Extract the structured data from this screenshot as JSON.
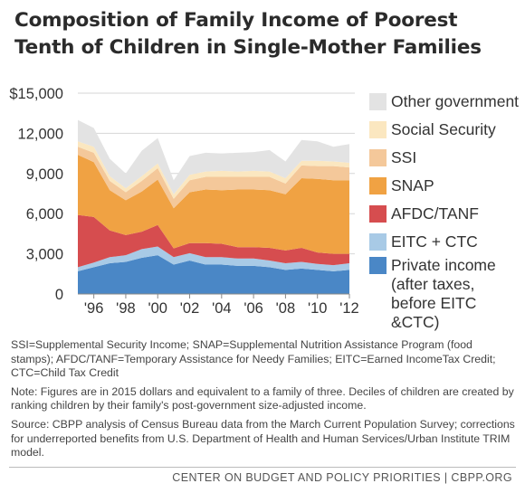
{
  "title": "Composition of Family Income of Poorest Tenth of Children in Single-Mother Families",
  "chart_data": {
    "type": "area",
    "stacked": true,
    "x": [
      1995,
      1996,
      1997,
      1998,
      1999,
      2000,
      2001,
      2002,
      2003,
      2004,
      2005,
      2006,
      2007,
      2008,
      2009,
      2010,
      2011,
      2012
    ],
    "xlim": [
      1995,
      2012
    ],
    "ylim": [
      0,
      15000
    ],
    "yticks": [
      0,
      3000,
      6000,
      9000,
      12000,
      15000
    ],
    "ytick_labels": [
      "0",
      "3,000",
      "6,000",
      "9,000",
      "12,000",
      "$15,000"
    ],
    "xtick_labels": [
      {
        "x": 1996,
        "label": "'96"
      },
      {
        "x": 1998,
        "label": "'98"
      },
      {
        "x": 2000,
        "label": "'00"
      },
      {
        "x": 2002,
        "label": "'02"
      },
      {
        "x": 2004,
        "label": "'04"
      },
      {
        "x": 2006,
        "label": "'06"
      },
      {
        "x": 2008,
        "label": "'08"
      },
      {
        "x": 2010,
        "label": "'10"
      },
      {
        "x": 2012,
        "label": "'12"
      }
    ],
    "grid": "horizontal",
    "legend_position": "right",
    "series": [
      {
        "name": "Private income (after taxes, before EITC &CTC)",
        "color": "#4a87c6",
        "values": [
          1700,
          2000,
          2300,
          2400,
          2700,
          2900,
          2200,
          2500,
          2200,
          2200,
          2100,
          2100,
          2000,
          1800,
          1900,
          1800,
          1700,
          1800
        ]
      },
      {
        "name": "EITC + CTC",
        "color": "#a8cae6",
        "values": [
          300,
          350,
          450,
          500,
          650,
          650,
          550,
          550,
          550,
          550,
          550,
          550,
          500,
          500,
          500,
          450,
          450,
          500
        ]
      },
      {
        "name": "AFDC/TANF",
        "color": "#d64d4f",
        "values": [
          3900,
          3400,
          2000,
          1500,
          1300,
          1600,
          650,
          750,
          1050,
          1000,
          850,
          850,
          950,
          950,
          1050,
          850,
          850,
          700
        ]
      },
      {
        "name": "SNAP",
        "color": "#f0a243",
        "values": [
          4500,
          4100,
          3000,
          2600,
          3000,
          3400,
          3000,
          3800,
          4000,
          4000,
          4300,
          4300,
          4300,
          4200,
          5200,
          5500,
          5500,
          5500
        ]
      },
      {
        "name": "SSI",
        "color": "#f4c89a",
        "values": [
          600,
          700,
          700,
          600,
          800,
          850,
          700,
          900,
          950,
          1000,
          950,
          950,
          1000,
          800,
          950,
          950,
          1050,
          950
        ]
      },
      {
        "name": "Social Security",
        "color": "#fbe7c0",
        "values": [
          400,
          450,
          350,
          300,
          350,
          350,
          350,
          400,
          400,
          450,
          400,
          450,
          400,
          400,
          350,
          400,
          350,
          350
        ]
      },
      {
        "name": "Other government",
        "color": "#e3e3e3",
        "values": [
          1600,
          1400,
          1300,
          1100,
          1900,
          1900,
          1050,
          1400,
          1400,
          1300,
          1400,
          1400,
          1600,
          1250,
          1550,
          1450,
          1100,
          1400
        ]
      }
    ]
  },
  "legend": [
    "Other government",
    "Social Security",
    "SSI",
    "SNAP",
    "AFDC/TANF",
    "EITC + CTC",
    "Private income (after taxes, before EITC &CTC)"
  ],
  "notes": {
    "abbreviations": "SSI=Supplemental Security Income; SNAP=Supplemental Nutrition Assistance Program (food stamps); AFDC/TANF=Temporary Assistance for Needy Families; EITC=Earned IncomeTax Credit; CTC=Child Tax Credit",
    "note": "Note: Figures are in 2015 dollars and equivalent to a family of three. Deciles of children are created by ranking children by their family's post-government size-adjusted income.",
    "source": "Source: CBPP analysis of Census Bureau data from the March Current Population Survey; corrections for underreported benefits from U.S. Department of Health and Human Services/Urban Institute TRIM model."
  },
  "footer": "CENTER ON BUDGET AND POLICY PRIORITIES | CBPP.ORG"
}
